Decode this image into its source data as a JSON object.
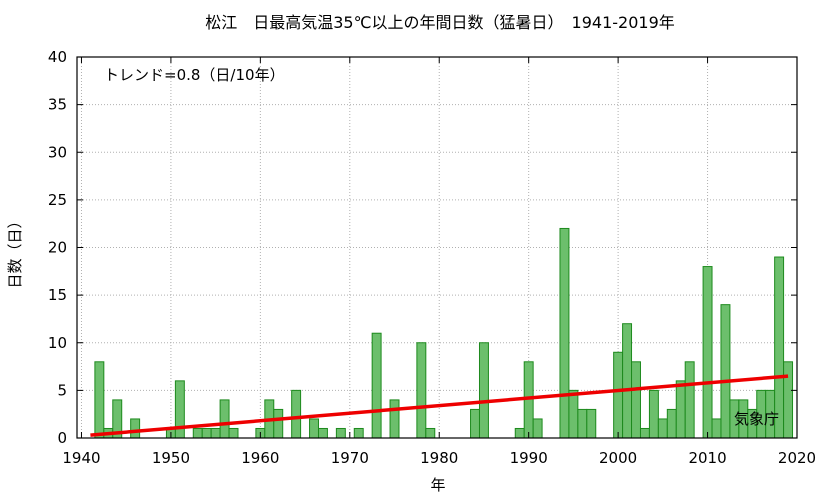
{
  "chart_data": {
    "type": "bar",
    "title": "松江　日最高気温35℃以上の年間日数（猛暑日）　1941-2019年",
    "xlabel": "年",
    "ylabel": "日数（日）",
    "trend_label": "トレンド=0.8（日/10年）",
    "source_label": "気象庁",
    "xlim": [
      1939.5,
      2020
    ],
    "ylim": [
      0,
      40
    ],
    "xticks": [
      1940,
      1950,
      1960,
      1970,
      1980,
      1990,
      2000,
      2010,
      2020
    ],
    "yticks": [
      0,
      5,
      10,
      15,
      20,
      25,
      30,
      35,
      40
    ],
    "grid": true,
    "colors": {
      "bar_fill": "#6cbf6c",
      "bar_edge": "#1d8a1d",
      "trend": "#ee0000"
    },
    "trend_line": {
      "x": [
        1941,
        2019
      ],
      "y": [
        0.3,
        6.5
      ]
    },
    "series": [
      {
        "x": [
          1941,
          1942,
          1943,
          1944,
          1945,
          1946,
          1947,
          1948,
          1949,
          1950,
          1951,
          1952,
          1953,
          1954,
          1955,
          1956,
          1957,
          1958,
          1959,
          1960,
          1961,
          1962,
          1963,
          1964,
          1965,
          1966,
          1967,
          1968,
          1969,
          1970,
          1971,
          1972,
          1973,
          1974,
          1975,
          1976,
          1977,
          1978,
          1979,
          1980,
          1981,
          1982,
          1983,
          1984,
          1985,
          1986,
          1987,
          1988,
          1989,
          1990,
          1991,
          1992,
          1993,
          1994,
          1995,
          1996,
          1997,
          1998,
          1999,
          2000,
          2001,
          2002,
          2003,
          2004,
          2005,
          2006,
          2007,
          2008,
          2009,
          2010,
          2011,
          2012,
          2013,
          2014,
          2015,
          2016,
          2017,
          2018,
          2019
        ],
        "values": [
          0,
          8,
          1,
          4,
          0,
          2,
          0,
          0,
          0,
          1,
          6,
          0,
          1,
          1,
          1,
          4,
          1,
          0,
          0,
          1,
          4,
          3,
          0,
          5,
          0,
          2,
          1,
          0,
          1,
          0,
          1,
          0,
          11,
          0,
          4,
          0,
          0,
          10,
          1,
          0,
          0,
          0,
          0,
          3,
          10,
          0,
          0,
          0,
          1,
          8,
          2,
          0,
          0,
          22,
          5,
          3,
          3,
          0,
          0,
          9,
          12,
          8,
          1,
          5,
          2,
          3,
          6,
          8,
          0,
          18,
          2,
          14,
          4,
          4,
          3,
          5,
          5,
          19,
          8
        ]
      }
    ]
  }
}
